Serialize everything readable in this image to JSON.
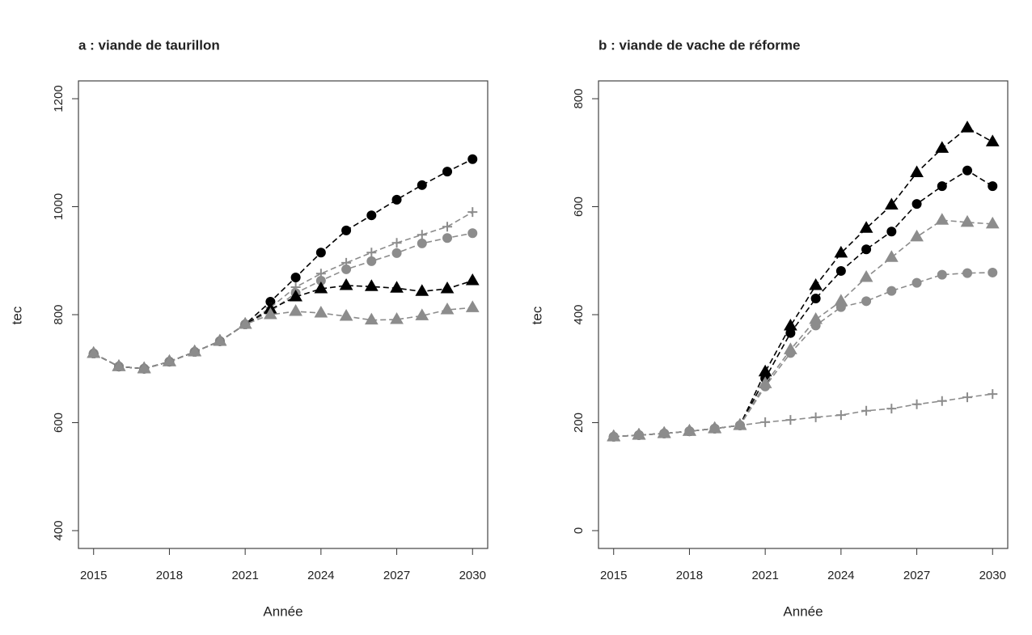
{
  "chart_data": [
    {
      "type": "line",
      "title": "a : viande de taurillon",
      "x_label": "Année",
      "y_label": "tec",
      "x": [
        2015,
        2016,
        2017,
        2018,
        2019,
        2020,
        2021,
        2022,
        2023,
        2024,
        2025,
        2026,
        2027,
        2028,
        2029,
        2030
      ],
      "xlim": [
        2014.4,
        2030.6
      ],
      "xticks": [
        2015,
        2018,
        2021,
        2024,
        2027,
        2030
      ],
      "ylim": [
        367,
        1233
      ],
      "yticks": [
        400,
        600,
        800,
        1000,
        1200
      ],
      "series": [
        {
          "color": "#000000",
          "marker": "circle",
          "values": [
            728,
            704,
            700,
            713,
            731,
            751,
            782,
            824,
            869,
            915,
            956,
            984,
            1013,
            1040,
            1065,
            1088
          ]
        },
        {
          "color": "#8c8c8c",
          "marker": "plus",
          "values": [
            728,
            704,
            700,
            713,
            731,
            751,
            782,
            813,
            851,
            876,
            896,
            915,
            933,
            948,
            963,
            990
          ]
        },
        {
          "color": "#8c8c8c",
          "marker": "circle",
          "values": [
            728,
            704,
            700,
            713,
            731,
            751,
            782,
            806,
            840,
            863,
            884,
            899,
            914,
            932,
            942,
            951
          ]
        },
        {
          "color": "#000000",
          "marker": "triangle",
          "values": [
            728,
            704,
            700,
            713,
            731,
            751,
            782,
            810,
            833,
            848,
            854,
            852,
            849,
            843,
            848,
            863
          ]
        },
        {
          "color": "#8c8c8c",
          "marker": "triangle",
          "values": [
            728,
            704,
            700,
            713,
            731,
            751,
            782,
            800,
            806,
            803,
            797,
            790,
            791,
            798,
            809,
            813
          ]
        }
      ]
    },
    {
      "type": "line",
      "title": "b : viande de vache de réforme",
      "x_label": "Année",
      "y_label": "tec",
      "x": [
        2015,
        2016,
        2017,
        2018,
        2019,
        2020,
        2021,
        2022,
        2023,
        2024,
        2025,
        2026,
        2027,
        2028,
        2029,
        2030
      ],
      "xlim": [
        2014.4,
        2030.6
      ],
      "xticks": [
        2015,
        2018,
        2021,
        2024,
        2027,
        2030
      ],
      "ylim": [
        -33,
        833
      ],
      "yticks": [
        0,
        200,
        400,
        600,
        800
      ],
      "series": [
        {
          "color": "#000000",
          "marker": "triangle",
          "values": [
            174,
            177,
            180,
            184,
            189,
            195,
            294,
            379,
            454,
            514,
            560,
            603,
            663,
            708,
            746,
            720
          ]
        },
        {
          "color": "#000000",
          "marker": "circle",
          "values": [
            174,
            177,
            180,
            184,
            189,
            195,
            282,
            366,
            430,
            481,
            521,
            554,
            605,
            638,
            667,
            638
          ]
        },
        {
          "color": "#8c8c8c",
          "marker": "triangle",
          "values": [
            174,
            177,
            180,
            184,
            189,
            195,
            272,
            335,
            391,
            425,
            469,
            506,
            544,
            575,
            571,
            568
          ]
        },
        {
          "color": "#8c8c8c",
          "marker": "circle",
          "values": [
            174,
            177,
            180,
            184,
            189,
            195,
            267,
            329,
            380,
            414,
            425,
            444,
            459,
            474,
            477,
            478
          ]
        },
        {
          "color": "#8c8c8c",
          "marker": "plus",
          "values": [
            174,
            177,
            180,
            184,
            189,
            195,
            201,
            205,
            210,
            214,
            222,
            226,
            234,
            240,
            247,
            253
          ]
        }
      ]
    }
  ]
}
